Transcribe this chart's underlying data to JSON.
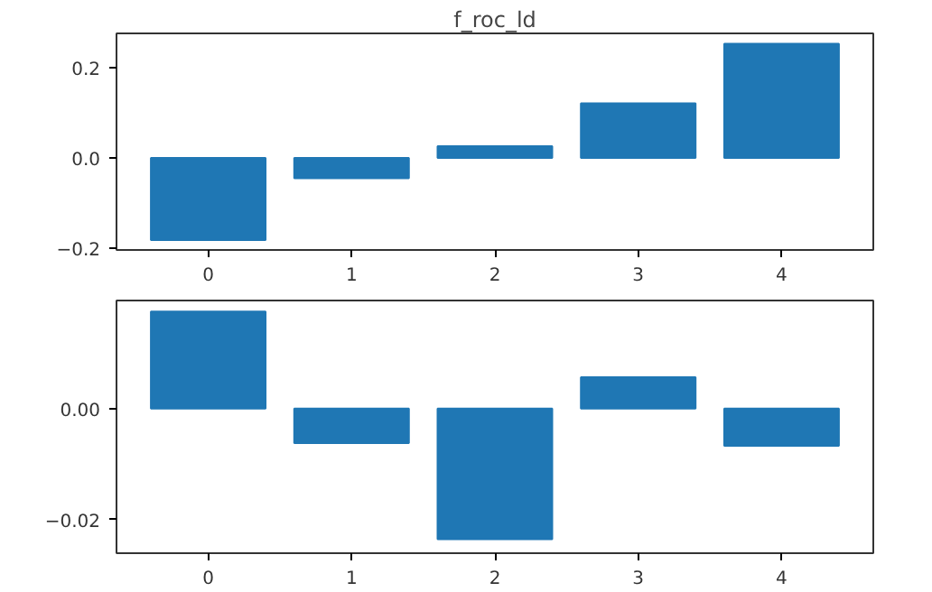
{
  "chart_data": [
    {
      "type": "bar",
      "title": "f_roc_ld",
      "x": [
        0,
        1,
        2,
        3,
        4
      ],
      "values": [
        -0.182,
        -0.045,
        0.026,
        0.121,
        0.253
      ],
      "color": "#1f77b4",
      "xlim": [
        -0.64,
        4.64
      ],
      "ylim": [
        -0.204,
        0.276
      ],
      "xticks": [
        0,
        1,
        2,
        3,
        4
      ],
      "yticks": [
        {
          "value": -0.2,
          "label": "−0.2"
        },
        {
          "value": 0.0,
          "label": "0.0"
        },
        {
          "value": 0.2,
          "label": "0.2"
        }
      ],
      "grid": false
    },
    {
      "type": "bar",
      "x": [
        0,
        1,
        2,
        3,
        4
      ],
      "values": [
        0.0174,
        -0.0062,
        -0.0235,
        0.0056,
        -0.0067
      ],
      "color": "#1f77b4",
      "xlim": [
        -0.64,
        4.64
      ],
      "ylim": [
        -0.026,
        0.0194
      ],
      "xticks": [
        0,
        1,
        2,
        3,
        4
      ],
      "yticks": [
        {
          "value": -0.02,
          "label": "−0.02"
        },
        {
          "value": 0.0,
          "label": "0.00"
        }
      ],
      "grid": false
    }
  ]
}
